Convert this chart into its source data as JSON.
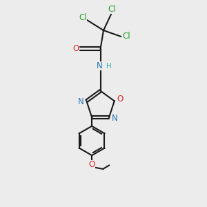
{
  "background_color": "#ececec",
  "bond_color": "#1a1a1a",
  "cl_color": "#2ca02c",
  "o_color": "#d62728",
  "n_color": "#1f77b4",
  "h_color": "#2ab0b8",
  "figsize": [
    3.0,
    3.0
  ],
  "dpi": 100,
  "xlim": [
    0,
    10
  ],
  "ylim": [
    0,
    10
  ]
}
